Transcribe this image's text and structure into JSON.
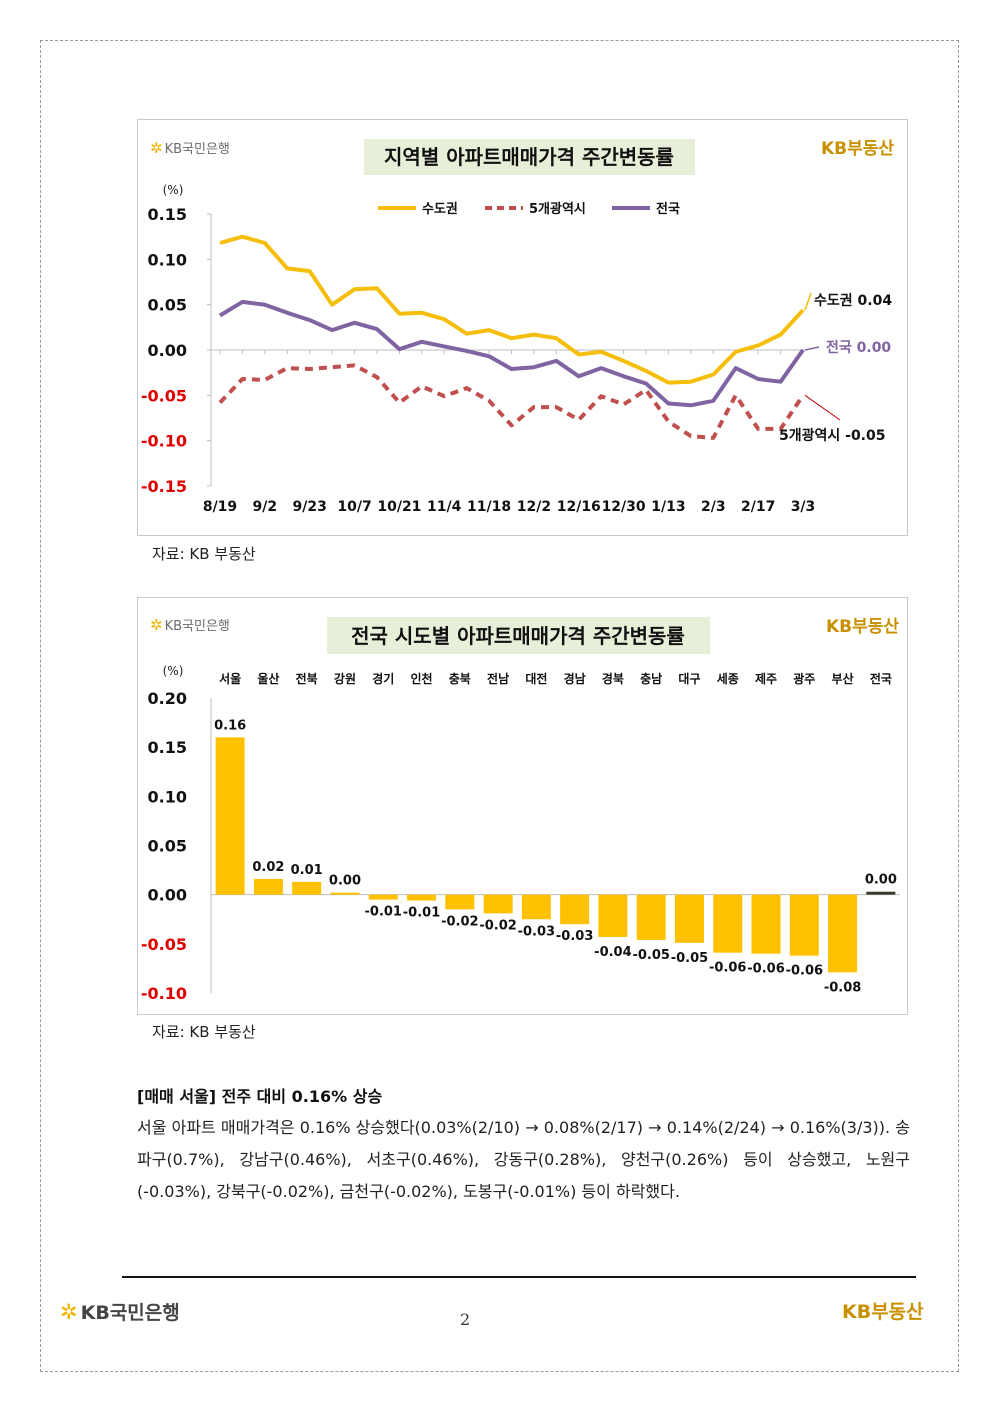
{
  "chart_data": [
    {
      "type": "line",
      "title": "지역별 아파트매매가격 주간변동률",
      "unit": "(%)",
      "ylim": [
        -0.15,
        0.15
      ],
      "yticks": [
        "0.15",
        "0.10",
        "0.05",
        "0.00",
        "-0.05",
        "-0.10",
        "-0.15"
      ],
      "xtick_labels": [
        "8/19",
        "9/2",
        "9/23",
        "10/7",
        "10/21",
        "11/4",
        "11/18",
        "12/2",
        "12/16",
        "12/30",
        "1/13",
        "2/3",
        "2/17",
        "3/3"
      ],
      "legend_position": "top-center",
      "series": [
        {
          "name": "수도권",
          "color": "#f5be0b",
          "dash": false,
          "values": [
            0.118,
            0.125,
            0.118,
            0.09,
            0.087,
            0.05,
            0.067,
            0.068,
            0.04,
            0.041,
            0.034,
            0.018,
            0.022,
            0.013,
            0.017,
            0.013,
            -0.005,
            -0.002,
            -0.012,
            -0.023,
            -0.036,
            -0.035,
            -0.027,
            -0.002,
            0.005,
            0.017,
            0.044
          ]
        },
        {
          "name": "5개광역시",
          "color": "#c0504d",
          "dash": true,
          "values": [
            -0.058,
            -0.032,
            -0.033,
            -0.02,
            -0.021,
            -0.019,
            -0.017,
            -0.03,
            -0.058,
            -0.04,
            -0.051,
            -0.042,
            -0.056,
            -0.083,
            -0.063,
            -0.063,
            -0.077,
            -0.051,
            -0.06,
            -0.044,
            -0.079,
            -0.095,
            -0.097,
            -0.05,
            -0.087,
            -0.087,
            -0.05
          ]
        },
        {
          "name": "전국",
          "color": "#8064a2",
          "dash": false,
          "values": [
            0.038,
            0.053,
            0.05,
            0.041,
            0.033,
            0.022,
            0.03,
            0.023,
            0.001,
            0.009,
            0.004,
            -0.001,
            -0.007,
            -0.021,
            -0.019,
            -0.012,
            -0.029,
            -0.02,
            -0.029,
            -0.037,
            -0.059,
            -0.061,
            -0.056,
            -0.02,
            -0.032,
            -0.035,
            0.0
          ]
        }
      ],
      "end_labels": [
        "수도권 0.04",
        "전국 0.00",
        "5개광역시 -0.05"
      ]
    },
    {
      "type": "bar",
      "title": "전국 시도별 아파트매매가격 주간변동률",
      "unit": "(%)",
      "ylim": [
        -0.1,
        0.2
      ],
      "yticks": [
        "0.20",
        "0.15",
        "0.10",
        "0.05",
        "0.00",
        "-0.05",
        "-0.10"
      ],
      "categories": [
        "서울",
        "울산",
        "전북",
        "강원",
        "경기",
        "인천",
        "충북",
        "전남",
        "대전",
        "경남",
        "경북",
        "충남",
        "대구",
        "세종",
        "제주",
        "광주",
        "부산",
        "전국"
      ],
      "values": [
        0.16,
        0.016,
        0.013,
        0.002,
        -0.005,
        -0.006,
        -0.015,
        -0.019,
        -0.025,
        -0.03,
        -0.043,
        -0.046,
        -0.049,
        -0.059,
        -0.06,
        -0.062,
        -0.079,
        0.003
      ],
      "value_labels": [
        "0.16",
        "0.02",
        "0.01",
        "0.00",
        "-0.01",
        "-0.01",
        "-0.02",
        "-0.02",
        "-0.03",
        "-0.03",
        "-0.04",
        "-0.05",
        "-0.05",
        "-0.06",
        "-0.06",
        "-0.06",
        "-0.08",
        "0.00"
      ],
      "colors": {
        "bar": "#ffc000",
        "highlight": "#3a3a2a"
      }
    }
  ],
  "brand": {
    "bank": "KB국민은행",
    "land": "KB부동산"
  },
  "source_label": "자료: KB 부동산",
  "section_title": "[매매 서울] 전주 대비 0.16% 상승",
  "body_text": "서울 아파트 매매가격은 0.16% 상승했다(0.03%(2/10) → 0.08%(2/17) → 0.14%(2/24) → 0.16%(3/3)). 송파구(0.7%), 강남구(0.46%), 서초구(0.46%), 강동구(0.28%), 양천구(0.26%) 등이 상승했고, 노원구(-0.03%), 강북구(-0.02%), 금천구(-0.02%), 도봉구(-0.01%) 등이 하락했다.",
  "page_number": "2",
  "colors": {
    "title_bg": "#e8efd9",
    "negative_tick": "#e00000",
    "brand_gold": "#c89100"
  }
}
